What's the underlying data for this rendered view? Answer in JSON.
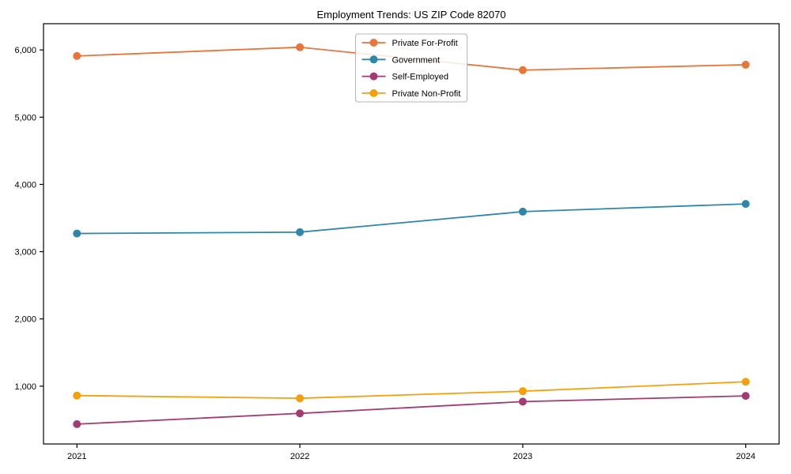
{
  "chart_data": {
    "type": "line",
    "title": "Employment Trends: US ZIP Code 82070",
    "xlabel": "",
    "ylabel": "",
    "x": [
      2021,
      2022,
      2023,
      2024
    ],
    "x_tick_labels": [
      "2021",
      "2022",
      "2023",
      "2024"
    ],
    "y_ticks": [
      1000,
      2000,
      3000,
      4000,
      5000,
      6000
    ],
    "y_tick_labels": [
      "1,000",
      "2,000",
      "3,000",
      "4,000",
      "5,000",
      "6,000"
    ],
    "xlim": [
      2020.85,
      2024.15
    ],
    "ylim": [
      140,
      6390
    ],
    "grid": false,
    "legend_position": "upper center",
    "marker": "circle",
    "series": [
      {
        "name": "Private For-Profit",
        "color": "#E7753C",
        "values": [
          5910,
          6040,
          5700,
          5780
        ]
      },
      {
        "name": "Government",
        "color": "#2E86AB",
        "values": [
          3270,
          3290,
          3595,
          3710
        ]
      },
      {
        "name": "Self-Employed",
        "color": "#A23B72",
        "values": [
          435,
          595,
          770,
          855
        ]
      },
      {
        "name": "Private Non-Profit",
        "color": "#F5A00A",
        "values": [
          860,
          820,
          925,
          1065
        ]
      }
    ]
  }
}
